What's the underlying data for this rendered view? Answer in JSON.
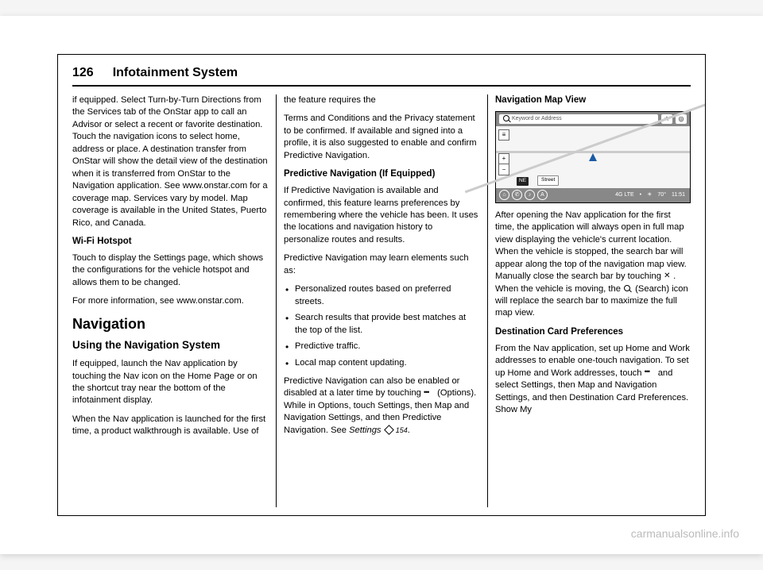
{
  "header": {
    "page_number": "126",
    "section": "Infotainment System"
  },
  "col1": {
    "p1": "if equipped. Select Turn-by-Turn Directions from the Services tab of the OnStar app to call an Advisor or select a recent or favorite destination. Touch the navigation icons to select home, address or place. A destination transfer from OnStar will show the detail view of the destination when it is transferred from OnStar to the Navigation application. See www.onstar.com for a coverage map. Services vary by model. Map coverage is available in the United States, Puerto Rico, and Canada.",
    "h_wifi": "Wi-Fi Hotspot",
    "p2": "Touch to display the Settings page, which shows the configurations for the vehicle hotspot and allows them to be changed.",
    "p3": "For more information, see www.onstar.com.",
    "h_nav": "Navigation",
    "h_using": "Using the Navigation System",
    "p4": "If equipped, launch the Nav application by touching the Nav icon on the Home Page or on the shortcut tray near the bottom of the infotainment display.",
    "p5": "When the Nav application is launched for the first time, a product walkthrough is available. Use of the feature requires the"
  },
  "col2": {
    "p1": "Terms and Conditions and the Privacy statement to be confirmed. If available and signed into a profile, it is also suggested to enable and confirm Predictive Navigation.",
    "h_pred": "Predictive Navigation (If Equipped)",
    "p2": "If Predictive Navigation is available and confirmed, this feature learns preferences by remembering where the vehicle has been. It uses the locations and navigation history to personalize routes and results.",
    "p3": "Predictive Navigation may learn elements such as:",
    "li1": "Personalized routes based on preferred streets.",
    "li2": "Search results that provide best matches at the top of the list.",
    "li3": "Predictive traffic.",
    "li4": "Local map content updating.",
    "p4a": "Predictive Navigation can also be enabled or disabled at a later time by touching ",
    "p4b": " (Options). While in Options, touch Settings, then Map and Navigation Settings, and then Predictive Navigation. See ",
    "p4_ref": "Settings",
    "p4_page": "154",
    "p4_end": "."
  },
  "col3": {
    "h_mapview": "Navigation Map View",
    "shot": {
      "search_ph": "Keyword or Address",
      "compass": "NE",
      "street": "Street",
      "lte": "4G LTE",
      "temp_icon": "☀",
      "temp": "70°",
      "time": "11:51",
      "home_icon": "⌂",
      "phone_icon": "✆",
      "media_icon": "♪",
      "nav_icon": "A",
      "star_icon": "★",
      "target_icon": "◎",
      "burger": "≡",
      "plus": "+",
      "minus": "−",
      "dot": "•"
    },
    "p1a": "After opening the Nav application for the first time, the application will always open in full map view displaying the vehicle's current location. When the vehicle is stopped, the search bar will appear along the top of the navigation map view. Manually close the search bar by touching ",
    "p1b": ". When the vehicle is moving, the ",
    "p1c": " (Search) icon will replace the search bar to maximize the full map view.",
    "h_dest": "Destination Card Preferences",
    "p2a": "From the Nav application, set up Home and Work addresses to enable one-touch navigation. To set up Home and Work addresses, touch ",
    "p2b": " and select Settings, then Map and Navigation Settings, and then Destination Card Preferences. Show My"
  },
  "watermark": "carmanualsonline.info"
}
